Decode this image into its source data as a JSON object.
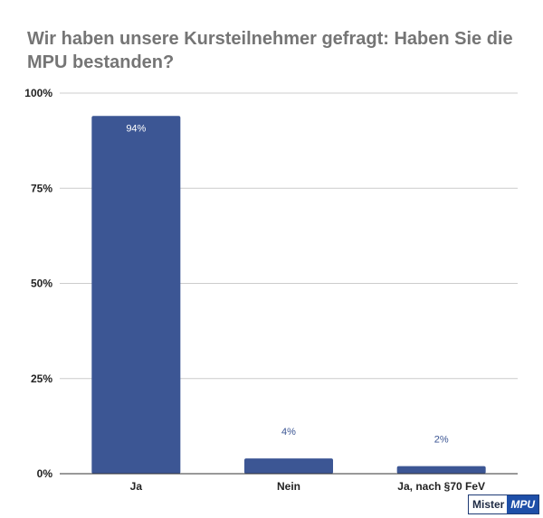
{
  "title": "Wir haben unsere Kursteilnehmer gefragt: Haben Sie die MPU bestanden?",
  "logo": {
    "part1": "Mister",
    "part2": "MPU"
  },
  "colors": {
    "bar": "#3c5694",
    "label_outside": "#3c5694"
  },
  "chart_data": {
    "type": "bar",
    "title": "Wir haben unsere Kursteilnehmer gefragt: Haben Sie die MPU bestanden?",
    "categories": [
      "Ja",
      "Nein",
      "Ja, nach §70 FeV"
    ],
    "values": [
      94,
      4,
      2
    ],
    "data_labels": [
      "94%",
      "4%",
      "2%"
    ],
    "ylim": [
      0,
      100
    ],
    "yticks": [
      0,
      25,
      50,
      75,
      100
    ],
    "ytick_labels": [
      "0%",
      "25%",
      "50%",
      "75%",
      "100%"
    ],
    "xlabel": "",
    "ylabel": "",
    "grid": true,
    "legend": "none"
  }
}
